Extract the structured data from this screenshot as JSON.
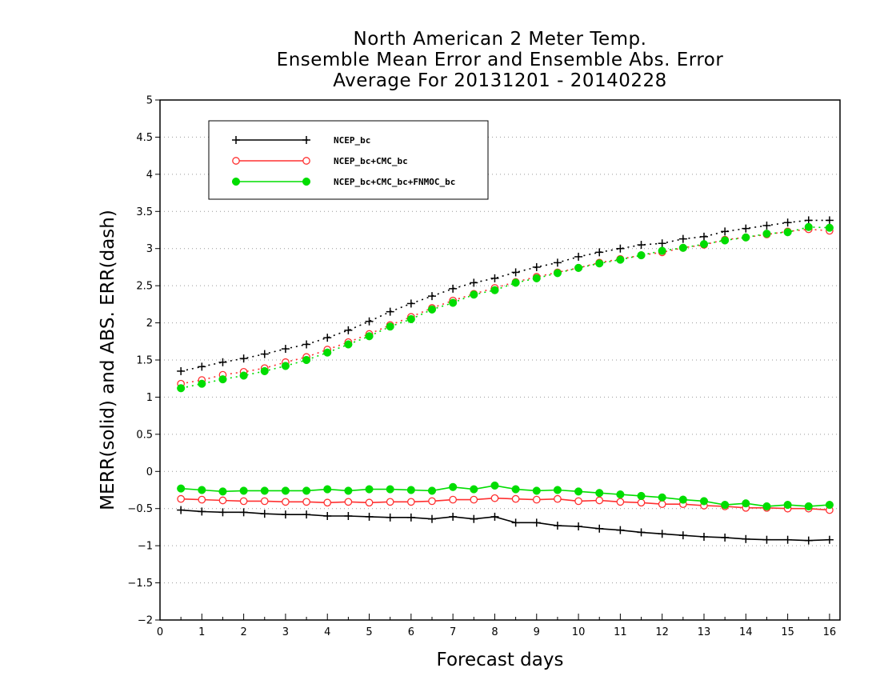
{
  "chart_data": {
    "type": "line",
    "title_lines": [
      "North American 2 Meter Temp.",
      "Ensemble Mean Error and Ensemble Abs. Error",
      "Average For 20131201 - 20140228"
    ],
    "xlabel": "Forecast days",
    "ylabel": "MERR(solid) and ABS. ERR(dash)",
    "xlim": [
      0,
      16.25
    ],
    "ylim": [
      -2,
      5
    ],
    "xticks": [
      "0",
      "1",
      "2",
      "3",
      "4",
      "5",
      "6",
      "7",
      "8",
      "9",
      "10",
      "11",
      "12",
      "13",
      "14",
      "15",
      "16"
    ],
    "yticks": [
      "5",
      "4.5",
      "4",
      "3.5",
      "3",
      "2.5",
      "2",
      "1.5",
      "1",
      "0.5",
      "0",
      "-0.5",
      "-1",
      "-1.5",
      "-2"
    ],
    "grid": "horizontal dotted",
    "legend_position": "top-left",
    "x": [
      0.5,
      1,
      1.5,
      2,
      2.5,
      3,
      3.5,
      4,
      4.5,
      5,
      5.5,
      6,
      6.5,
      7,
      7.5,
      8,
      8.5,
      9,
      9.5,
      10,
      10.5,
      11,
      11.5,
      12,
      12.5,
      13,
      13.5,
      14,
      14.5,
      15,
      15.5,
      16
    ],
    "series": [
      {
        "name": "NCEP_bc",
        "color": "#000000",
        "marker": "plus",
        "merr": [
          -0.52,
          -0.54,
          -0.55,
          -0.55,
          -0.57,
          -0.58,
          -0.58,
          -0.6,
          -0.6,
          -0.61,
          -0.62,
          -0.62,
          -0.64,
          -0.61,
          -0.64,
          -0.61,
          -0.69,
          -0.69,
          -0.73,
          -0.74,
          -0.77,
          -0.79,
          -0.82,
          -0.84,
          -0.86,
          -0.88,
          -0.89,
          -0.91,
          -0.92,
          -0.92,
          -0.93,
          -0.92
        ],
        "abs_err": [
          1.35,
          1.41,
          1.47,
          1.52,
          1.58,
          1.65,
          1.71,
          1.8,
          1.9,
          2.02,
          2.15,
          2.26,
          2.36,
          2.46,
          2.54,
          2.6,
          2.68,
          2.75,
          2.81,
          2.89,
          2.95,
          3.0,
          3.05,
          3.07,
          3.13,
          3.16,
          3.23,
          3.27,
          3.31,
          3.35,
          3.38,
          3.38
        ]
      },
      {
        "name": "NCEP_bc+CMC_bc",
        "color": "#ff3030",
        "marker": "open-circle",
        "merr": [
          -0.37,
          -0.38,
          -0.39,
          -0.4,
          -0.4,
          -0.41,
          -0.41,
          -0.42,
          -0.41,
          -0.42,
          -0.41,
          -0.41,
          -0.4,
          -0.38,
          -0.38,
          -0.36,
          -0.37,
          -0.38,
          -0.37,
          -0.4,
          -0.39,
          -0.41,
          -0.42,
          -0.44,
          -0.44,
          -0.46,
          -0.47,
          -0.49,
          -0.49,
          -0.5,
          -0.5,
          -0.52
        ],
        "abs_err": [
          1.18,
          1.23,
          1.3,
          1.34,
          1.39,
          1.47,
          1.54,
          1.64,
          1.74,
          1.85,
          1.97,
          2.08,
          2.2,
          2.3,
          2.39,
          2.47,
          2.55,
          2.62,
          2.68,
          2.74,
          2.81,
          2.86,
          2.91,
          2.95,
          3.01,
          3.05,
          3.12,
          3.15,
          3.19,
          3.23,
          3.26,
          3.24
        ]
      },
      {
        "name": "NCEP_bc+CMC_bc+FNMOC_bc",
        "color": "#00dd00",
        "marker": "filled-circle",
        "merr": [
          -0.23,
          -0.25,
          -0.27,
          -0.26,
          -0.26,
          -0.26,
          -0.26,
          -0.24,
          -0.26,
          -0.24,
          -0.24,
          -0.25,
          -0.26,
          -0.21,
          -0.24,
          -0.19,
          -0.24,
          -0.26,
          -0.25,
          -0.27,
          -0.29,
          -0.31,
          -0.33,
          -0.35,
          -0.38,
          -0.4,
          -0.45,
          -0.43,
          -0.47,
          -0.45,
          -0.47,
          -0.45
        ],
        "abs_err": [
          1.12,
          1.18,
          1.24,
          1.29,
          1.35,
          1.42,
          1.5,
          1.6,
          1.71,
          1.82,
          1.95,
          2.05,
          2.18,
          2.27,
          2.38,
          2.44,
          2.54,
          2.6,
          2.67,
          2.74,
          2.8,
          2.85,
          2.91,
          2.97,
          3.01,
          3.06,
          3.11,
          3.15,
          3.2,
          3.22,
          3.29,
          3.28
        ]
      }
    ]
  }
}
